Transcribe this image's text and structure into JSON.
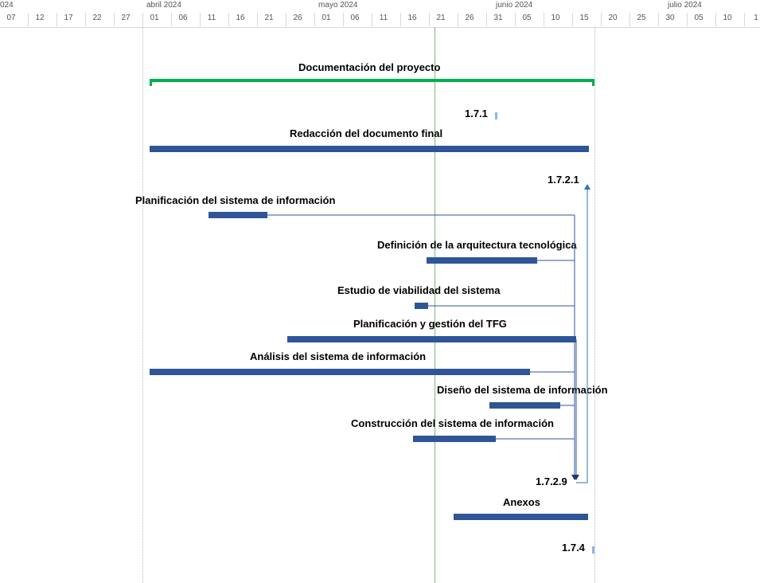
{
  "timescale": {
    "months": [
      "024",
      "abril 2024",
      "mayo 2024",
      "junio 2024",
      "julio 2024"
    ],
    "days": [
      "07",
      "12",
      "17",
      "22",
      "27",
      "01",
      "06",
      "11",
      "16",
      "21",
      "26",
      "01",
      "06",
      "11",
      "16",
      "21",
      "26",
      "31",
      "05",
      "10",
      "15",
      "20",
      "25",
      "30",
      "05",
      "10",
      "1"
    ]
  },
  "tasks": {
    "doc_proyecto": "Documentación del proyecto",
    "m171": "1.7.1",
    "redaccion": "Redacción del documento final",
    "m1721": "1.7.2.1",
    "planificacion_si": "Planificación del sistema de información",
    "definicion_arq": "Definición de la arquitectura tecnológica",
    "estudio_viabilidad": "Estudio de viabilidad del sistema",
    "planificacion_tfg": "Planificación y gestión del TFG",
    "analisis_si": "Análisis del sistema de información",
    "diseno_si": "Diseño del sistema de información",
    "construccion_si": "Construcción del sistema de información",
    "m1729": "1.7.2.9",
    "anexos": "Anexos",
    "m174": "1.7.4"
  },
  "colors": {
    "task_bar": "#2f5597",
    "summary_bar": "#00b050",
    "today_line": "#7cb87c",
    "link_line": "#2f5597",
    "milestone": "#8fb4e3"
  }
}
